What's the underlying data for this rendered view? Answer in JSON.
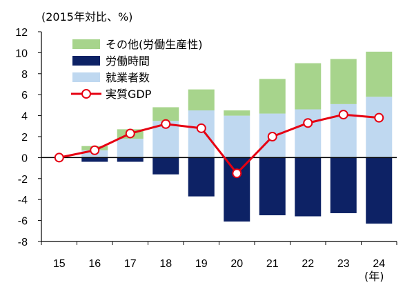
{
  "chart_data": {
    "type": "bar",
    "title": "",
    "ylabel": "(2015年対比、%)",
    "xlabel": "(年)",
    "categories": [
      "15",
      "16",
      "17",
      "18",
      "19",
      "20",
      "21",
      "22",
      "23",
      "24"
    ],
    "ylim": [
      -8,
      12
    ],
    "yticks": [
      "-8",
      "-6",
      "-4",
      "-2",
      "0",
      "2",
      "4",
      "6",
      "8",
      "10",
      "12"
    ],
    "stacked": true,
    "series": [
      {
        "name": "その他(労働生産性)",
        "kind": "bar",
        "color": "#a7d48c",
        "values": [
          0,
          0.4,
          0.9,
          1.3,
          2.0,
          0.5,
          3.3,
          4.4,
          4.3,
          4.3
        ]
      },
      {
        "name": "労働時間",
        "kind": "bar",
        "color": "#0d2265",
        "values": [
          0,
          -0.4,
          -0.4,
          -1.6,
          -3.7,
          -6.1,
          -5.5,
          -5.6,
          -5.3,
          -6.3
        ]
      },
      {
        "name": "就業者数",
        "kind": "bar",
        "color": "#bfd8f0",
        "values": [
          0,
          0.7,
          1.8,
          3.5,
          4.5,
          4.0,
          4.2,
          4.6,
          5.1,
          5.8
        ]
      },
      {
        "name": "実質GDP",
        "kind": "line",
        "color": "#e60012",
        "values": [
          0,
          0.7,
          2.3,
          3.2,
          2.8,
          -1.5,
          2.0,
          3.3,
          4.1,
          3.8
        ]
      }
    ],
    "legend_position": "top-left",
    "grid": false
  }
}
